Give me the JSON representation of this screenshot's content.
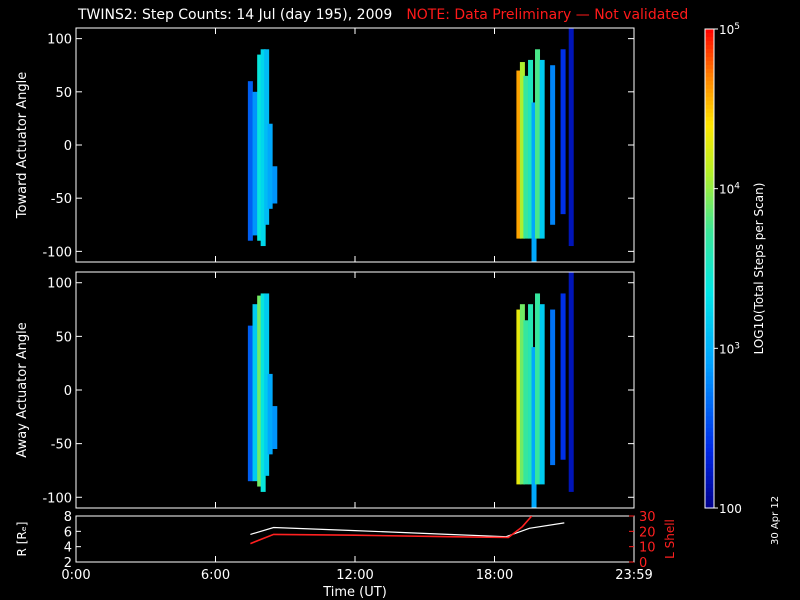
{
  "title": "TWINS2: Step Counts: 14 Jul (day 195), 2009",
  "note": "NOTE: Data Preliminary — Not validated",
  "date_stamp": "30 Apr 12",
  "colors": {
    "background": "#000000",
    "axes": "#ffffff",
    "note": "#ff1a1a",
    "r_line": "#ffffff",
    "l_shell_line": "#ff2020"
  },
  "chart_data": [
    {
      "type": "heatmap",
      "ylabel": "Toward Actuator Angle",
      "ylim": [
        -110,
        110
      ],
      "yticks": [
        -100,
        -50,
        0,
        50,
        100
      ],
      "xlim": [
        0,
        24
      ],
      "x_units": "hours UT",
      "value_units": "Total Steps per Scan",
      "columns": [
        {
          "t": 7.5,
          "ymin": -90,
          "ymax": 60,
          "value": 400
        },
        {
          "t": 7.7,
          "ymin": -85,
          "ymax": 50,
          "value": 700
        },
        {
          "t": 7.9,
          "ymin": -90,
          "ymax": 85,
          "value": 2500
        },
        {
          "t": 8.05,
          "ymin": -95,
          "ymax": 90,
          "value": 1800
        },
        {
          "t": 8.2,
          "ymin": -75,
          "ymax": 90,
          "value": 1200
        },
        {
          "t": 8.35,
          "ymin": -60,
          "ymax": 20,
          "value": 900
        },
        {
          "t": 8.55,
          "ymin": -55,
          "ymax": -20,
          "value": 700
        },
        {
          "t": 19.05,
          "ymin": -88,
          "ymax": 70,
          "value": 40000
        },
        {
          "t": 19.2,
          "ymin": -88,
          "ymax": 78,
          "value": 12000
        },
        {
          "t": 19.35,
          "ymin": -88,
          "ymax": 65,
          "value": 5000
        },
        {
          "t": 19.55,
          "ymin": -88,
          "ymax": 80,
          "value": 3500
        },
        {
          "t": 19.7,
          "ymin": -110,
          "ymax": 40,
          "value": 900
        },
        {
          "t": 19.85,
          "ymin": -88,
          "ymax": 90,
          "value": 6000
        },
        {
          "t": 20.05,
          "ymin": -88,
          "ymax": 80,
          "value": 1500
        },
        {
          "t": 20.5,
          "ymin": -75,
          "ymax": 75,
          "value": 600
        },
        {
          "t": 20.95,
          "ymin": -65,
          "ymax": 90,
          "value": 250
        },
        {
          "t": 21.3,
          "ymin": -95,
          "ymax": 110,
          "value": 150
        }
      ]
    },
    {
      "type": "heatmap",
      "ylabel": "Away Actuator Angle",
      "ylim": [
        -110,
        110
      ],
      "yticks": [
        -100,
        -50,
        0,
        50,
        100
      ],
      "xlim": [
        0,
        24
      ],
      "x_units": "hours UT",
      "value_units": "Total Steps per Scan",
      "columns": [
        {
          "t": 7.5,
          "ymin": -85,
          "ymax": 60,
          "value": 400
        },
        {
          "t": 7.7,
          "ymin": -85,
          "ymax": 80,
          "value": 1500
        },
        {
          "t": 7.9,
          "ymin": -90,
          "ymax": 88,
          "value": 8000
        },
        {
          "t": 8.05,
          "ymin": -95,
          "ymax": 90,
          "value": 2500
        },
        {
          "t": 8.2,
          "ymin": -80,
          "ymax": 90,
          "value": 1500
        },
        {
          "t": 8.35,
          "ymin": -60,
          "ymax": 15,
          "value": 900
        },
        {
          "t": 8.55,
          "ymin": -55,
          "ymax": -15,
          "value": 700
        },
        {
          "t": 19.05,
          "ymin": -88,
          "ymax": 75,
          "value": 20000
        },
        {
          "t": 19.2,
          "ymin": -88,
          "ymax": 80,
          "value": 8000
        },
        {
          "t": 19.35,
          "ymin": -88,
          "ymax": 65,
          "value": 5000
        },
        {
          "t": 19.55,
          "ymin": -88,
          "ymax": 80,
          "value": 4000
        },
        {
          "t": 19.7,
          "ymin": -110,
          "ymax": 40,
          "value": 900
        },
        {
          "t": 19.85,
          "ymin": -88,
          "ymax": 90,
          "value": 5000
        },
        {
          "t": 20.05,
          "ymin": -88,
          "ymax": 80,
          "value": 1500
        },
        {
          "t": 20.5,
          "ymin": -70,
          "ymax": 75,
          "value": 500
        },
        {
          "t": 20.95,
          "ymin": -65,
          "ymax": 90,
          "value": 250
        },
        {
          "t": 21.3,
          "ymin": -95,
          "ymax": 110,
          "value": 150
        }
      ]
    },
    {
      "type": "line",
      "ylabel": "R [Rₑ]",
      "ylabel_right": "L Shell",
      "ylim": [
        2,
        8
      ],
      "yticks": [
        2,
        4,
        6,
        8
      ],
      "ylim_right": [
        0,
        30
      ],
      "yticks_right": [
        0,
        10,
        20,
        30
      ],
      "xlabel": "Time (UT)",
      "xlim": [
        0,
        24
      ],
      "xticks": [
        0,
        6,
        12,
        18,
        24
      ],
      "xtick_labels": [
        "0:00",
        "6:00",
        "12:00",
        "18:00",
        "23:59"
      ],
      "series": [
        {
          "axis": "left",
          "x": [
            7.5,
            8.5,
            12,
            16,
            18.5,
            19.5,
            21.0
          ],
          "y": [
            5.6,
            6.5,
            6.1,
            5.6,
            5.3,
            6.4,
            7.1
          ]
        },
        {
          "axis": "right",
          "x": [
            7.5,
            8.5,
            12,
            16,
            18.6,
            19.2,
            19.6
          ],
          "y": [
            12,
            18,
            17.5,
            16.5,
            16,
            23,
            30
          ]
        }
      ]
    }
  ],
  "colorbar": {
    "label": "LOG10(Total Steps per Scan)",
    "min_value": 100,
    "max_value": 100000,
    "ticks": [
      {
        "value": 100000,
        "label": "10^5"
      },
      {
        "value": 10000,
        "label": "10^4"
      },
      {
        "value": 1000,
        "label": "10^3"
      },
      {
        "value": 100,
        "label": "100"
      }
    ]
  }
}
